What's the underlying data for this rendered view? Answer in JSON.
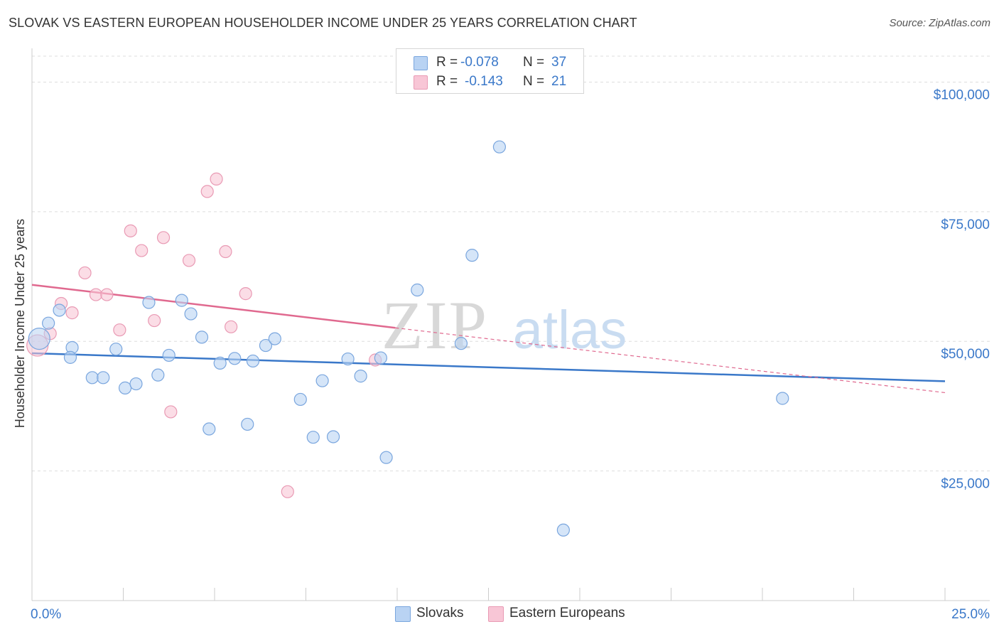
{
  "title": "SLOVAK VS EASTERN EUROPEAN HOUSEHOLDER INCOME UNDER 25 YEARS CORRELATION CHART",
  "source": "Source: ZipAtlas.com",
  "watermark": {
    "zip": "ZIP",
    "atlas": "atlas"
  },
  "colors": {
    "blue_fill": "#b9d3f3",
    "blue_stroke": "#7aa6de",
    "blue_line": "#3a78c9",
    "pink_fill": "#f8c6d6",
    "pink_stroke": "#e99ab4",
    "pink_line": "#e0698f",
    "axis_text": "#3a78c9",
    "grid": "#dddddd"
  },
  "legend": {
    "rows": [
      {
        "r_label": "R =",
        "r_value": "-0.078",
        "n_label": "N =",
        "n_value": "37",
        "color": "blue"
      },
      {
        "r_label": "R =",
        "r_value": "-0.143",
        "n_label": "N =",
        "n_value": "21",
        "color": "pink"
      }
    ]
  },
  "bottom_legend": [
    {
      "label": "Slovaks",
      "color": "blue"
    },
    {
      "label": "Eastern Europeans",
      "color": "pink"
    }
  ],
  "chart_data": {
    "type": "scatter",
    "title": "SLOVAK VS EASTERN EUROPEAN HOUSEHOLDER INCOME UNDER 25 YEARS CORRELATION CHART",
    "xlabel": "",
    "ylabel": "Householder Income Under 25 years",
    "xlim": [
      0,
      25
    ],
    "ylim": [
      0,
      105000
    ],
    "x_tick_labels": [
      "0.0%",
      "25.0%"
    ],
    "y_ticks": [
      25000,
      50000,
      75000,
      100000
    ],
    "y_tick_labels": [
      "$25,000",
      "$50,000",
      "$75,000",
      "$100,000"
    ],
    "grid": true,
    "series": [
      {
        "name": "Slovaks",
        "color": "blue",
        "points": [
          [
            0.2,
            50500
          ],
          [
            0.45,
            53500
          ],
          [
            0.75,
            56000
          ],
          [
            1.1,
            48800
          ],
          [
            1.05,
            46900
          ],
          [
            1.65,
            43000
          ],
          [
            1.95,
            43000
          ],
          [
            2.3,
            48500
          ],
          [
            2.55,
            41000
          ],
          [
            2.85,
            41800
          ],
          [
            3.2,
            57500
          ],
          [
            3.45,
            43500
          ],
          [
            3.75,
            47300
          ],
          [
            4.1,
            57900
          ],
          [
            4.35,
            55300
          ],
          [
            4.65,
            50800
          ],
          [
            5.15,
            45800
          ],
          [
            5.55,
            46700
          ],
          [
            5.9,
            34000
          ],
          [
            6.05,
            46200
          ],
          [
            6.4,
            49200
          ],
          [
            6.65,
            50500
          ],
          [
            7.35,
            38800
          ],
          [
            7.7,
            31500
          ],
          [
            7.95,
            42400
          ],
          [
            8.25,
            31600
          ],
          [
            8.65,
            46600
          ],
          [
            9.0,
            43300
          ],
          [
            9.55,
            46800
          ],
          [
            9.7,
            27600
          ],
          [
            10.55,
            59900
          ],
          [
            11.75,
            49600
          ],
          [
            12.05,
            66600
          ],
          [
            12.8,
            87500
          ],
          [
            14.55,
            13600
          ],
          [
            20.55,
            39000
          ],
          [
            4.85,
            33100
          ]
        ],
        "trend": {
          "x": [
            0,
            25
          ],
          "y": [
            47700,
            42300
          ]
        },
        "stats": {
          "r": -0.078,
          "n": 37
        }
      },
      {
        "name": "Eastern Europeans",
        "color": "pink",
        "points": [
          [
            0.15,
            49200
          ],
          [
            0.5,
            51500
          ],
          [
            0.8,
            57300
          ],
          [
            1.1,
            55500
          ],
          [
            1.45,
            63200
          ],
          [
            1.75,
            59000
          ],
          [
            2.05,
            59000
          ],
          [
            2.4,
            52200
          ],
          [
            2.7,
            71300
          ],
          [
            3.0,
            67500
          ],
          [
            3.35,
            54000
          ],
          [
            3.6,
            70000
          ],
          [
            3.8,
            36400
          ],
          [
            4.3,
            65600
          ],
          [
            4.8,
            78900
          ],
          [
            5.05,
            81300
          ],
          [
            5.3,
            67300
          ],
          [
            5.45,
            52800
          ],
          [
            5.85,
            59200
          ],
          [
            7.0,
            21000
          ],
          [
            9.4,
            46400
          ]
        ],
        "trend": {
          "x": [
            0,
            9.95
          ],
          "y": [
            60900,
            52600
          ]
        },
        "trend_dashed": {
          "x": [
            9.95,
            25
          ],
          "y": [
            52600,
            40100
          ]
        },
        "stats": {
          "r": -0.143,
          "n": 21
        }
      }
    ]
  }
}
